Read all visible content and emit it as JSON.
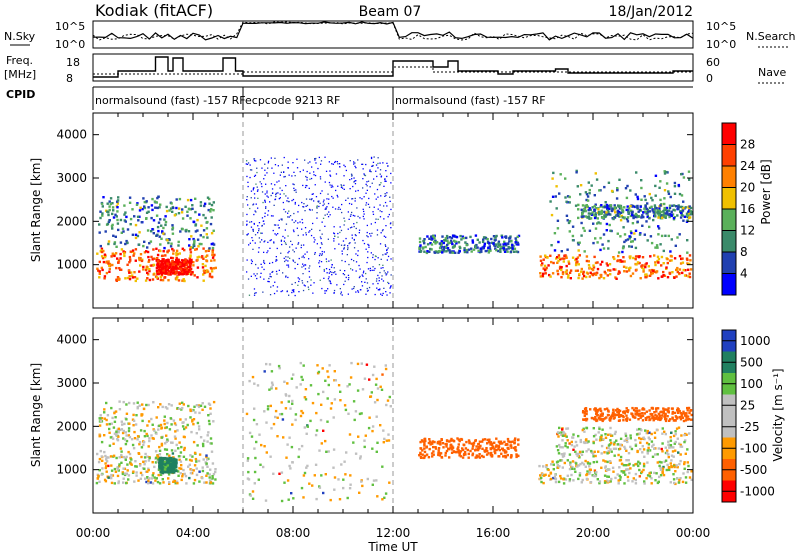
{
  "header": {
    "station": "Kodiak (fitACF)",
    "beam": "Beam 07",
    "date": "18/Jan/2012"
  },
  "top_panels": {
    "nsky_label": "N.Sky",
    "nsky_ticks": [
      "10^5",
      "10^0"
    ],
    "nsearch_label": "N.Search",
    "nsearch_ticks": [
      "10^5",
      "10^0"
    ],
    "freq_label_1": "Freq.",
    "freq_label_2": "[MHz]",
    "freq_ticks": [
      "18",
      "8"
    ],
    "nave_label": "Nave",
    "nave_ticks": [
      "60",
      "0"
    ],
    "cpid_label": "CPID",
    "cpid_segments": [
      {
        "label": "normalsound (fast) -157 RF",
        "start": 0,
        "end": 6
      },
      {
        "label": "ecpcode 9213 RF",
        "start": 6,
        "end": 12
      },
      {
        "label": "normalsound (fast) -157 RF",
        "start": 12,
        "end": 24
      }
    ]
  },
  "x_axis": {
    "label": "Time UT",
    "ticks": [
      "00:00",
      "04:00",
      "08:00",
      "12:00",
      "16:00",
      "20:00",
      "00:00"
    ],
    "tick_hours": [
      0,
      4,
      8,
      12,
      16,
      20,
      24
    ],
    "range": [
      0,
      24
    ]
  },
  "colors": {
    "power_scale": [
      "#0000ff",
      "#2040b0",
      "#3a8a6a",
      "#5ab05a",
      "#f0c000",
      "#ff8000",
      "#ff4000",
      "#ff0000"
    ],
    "velocity_scale": [
      "#ff0000",
      "#ff6000",
      "#ff9a00",
      "#c0c0c0",
      "#c0c0c0",
      "#60c040",
      "#208060",
      "#2040c0"
    ]
  },
  "chart_data": [
    {
      "type": "heatmap",
      "ylabel": "Slant Range [km]",
      "x_range_hours": [
        0,
        24
      ],
      "ylim": [
        0,
        4500
      ],
      "y_ticks": [
        1000,
        2000,
        3000,
        4000
      ],
      "colorbar": {
        "label": "Power [dB]",
        "ticks": [
          4,
          8,
          12,
          16,
          20,
          24,
          28
        ],
        "range": [
          0,
          32
        ]
      },
      "regions": [
        {
          "t0": 0.1,
          "t1": 4.9,
          "r0": 650,
          "r1": 1400,
          "level": 0.75
        },
        {
          "t0": 2.5,
          "t1": 3.9,
          "r0": 800,
          "r1": 1150,
          "level": 1.0
        },
        {
          "t0": 0.2,
          "t1": 4.8,
          "r0": 1400,
          "r1": 2600,
          "level": 0.3
        },
        {
          "t0": 6.1,
          "t1": 11.9,
          "r0": 300,
          "r1": 3500,
          "level": 0.05
        },
        {
          "t0": 13.0,
          "t1": 17.0,
          "r0": 1300,
          "r1": 1700,
          "level": 0.25
        },
        {
          "t0": 17.8,
          "t1": 23.9,
          "r0": 700,
          "r1": 1250,
          "level": 0.75
        },
        {
          "t0": 18.2,
          "t1": 23.8,
          "r0": 1300,
          "r1": 3200,
          "level": 0.3
        },
        {
          "t0": 19.5,
          "t1": 23.9,
          "r0": 2100,
          "r1": 2400,
          "level": 0.3
        }
      ]
    },
    {
      "type": "heatmap",
      "ylabel": "Slant Range [km]",
      "x_range_hours": [
        0,
        24
      ],
      "ylim": [
        0,
        4500
      ],
      "y_ticks": [
        1000,
        2000,
        3000,
        4000
      ],
      "colorbar": {
        "label": "Velocity [m s⁻¹]",
        "ticks": [
          1000,
          500,
          100,
          25,
          -25,
          -100,
          -500,
          -1000
        ]
      },
      "regions": [
        {
          "t0": 0.1,
          "t1": 4.9,
          "r0": 700,
          "r1": 1400,
          "velocity": 0
        },
        {
          "t0": 2.6,
          "t1": 3.3,
          "r0": 950,
          "r1": 1300,
          "velocity": 150
        },
        {
          "t0": 0.2,
          "t1": 4.8,
          "r0": 1400,
          "r1": 2600,
          "velocity": 0
        },
        {
          "t0": 6.1,
          "t1": 11.9,
          "r0": 300,
          "r1": 3500,
          "velocity": 0
        },
        {
          "t0": 13.0,
          "t1": 17.0,
          "r0": 1300,
          "r1": 1750,
          "velocity": -300
        },
        {
          "t0": 17.8,
          "t1": 23.9,
          "r0": 700,
          "r1": 1250,
          "velocity": 0
        },
        {
          "t0": 18.5,
          "t1": 23.8,
          "r0": 1300,
          "r1": 2000,
          "velocity": 0
        },
        {
          "t0": 19.5,
          "t1": 23.9,
          "r0": 2150,
          "r1": 2450,
          "velocity": -300
        }
      ]
    }
  ]
}
